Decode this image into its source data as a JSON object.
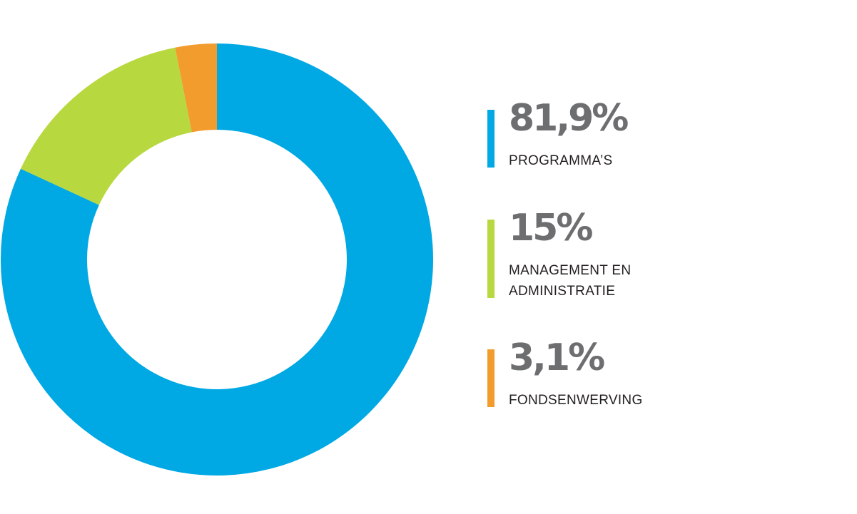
{
  "chart_data": {
    "type": "pie",
    "variant": "donut",
    "slices": [
      {
        "label": [
          "PROGRAMMA’S"
        ],
        "value": 81.9,
        "display": "81,9%",
        "color": "#00a8e4"
      },
      {
        "label": [
          "MANAGEMENT EN",
          "ADMINISTRATIE"
        ],
        "value": 15,
        "display": "15%",
        "color": "#b8d83f"
      },
      {
        "label": [
          "FONDSENWERVING"
        ],
        "value": 3.1,
        "display": "3,1%",
        "color": "#f39c2e"
      }
    ],
    "legend_position": "right"
  }
}
